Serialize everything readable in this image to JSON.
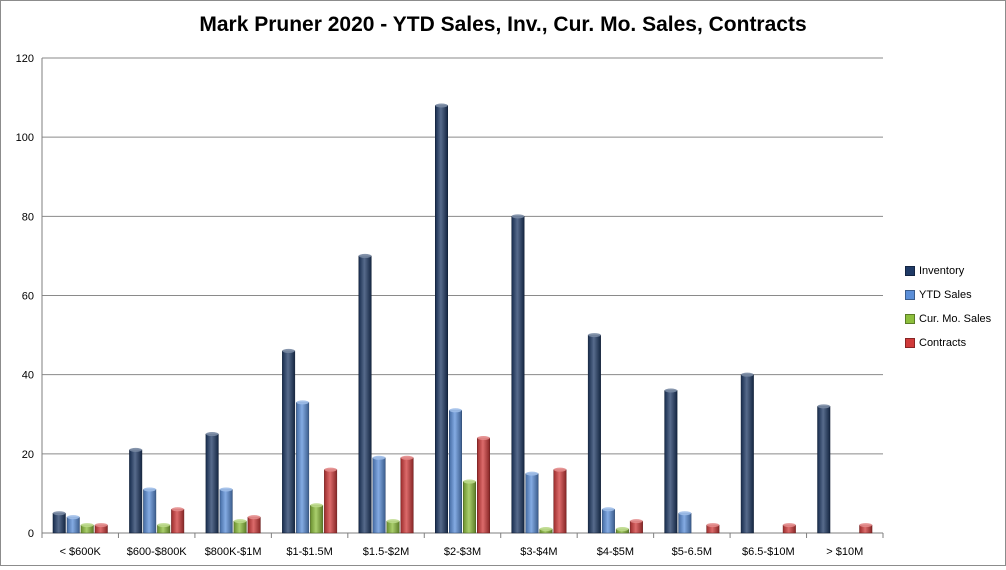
{
  "chart_data": {
    "type": "bar",
    "title": "Mark Pruner 2020 - YTD Sales, Inv., Cur. Mo. Sales, Contracts",
    "xlabel": "",
    "ylabel": "",
    "ylim": [
      0,
      120
    ],
    "yticks": [
      0,
      20,
      40,
      60,
      80,
      100,
      120
    ],
    "grid": true,
    "legend_position": "right",
    "categories": [
      "< $600K",
      "$600-$800K",
      "$800K-$1M",
      "$1-$1.5M",
      "$1.5-$2M",
      "$2-$3M",
      "$3-$4M",
      "$4-$5M",
      "$5-6.5M",
      "$6.5-$10M",
      "> $10M"
    ],
    "series": [
      {
        "name": "Inventory",
        "color": "#1f3a66",
        "values": [
          5,
          21,
          25,
          46,
          70,
          108,
          80,
          50,
          36,
          40,
          32
        ]
      },
      {
        "name": "YTD Sales",
        "color": "#5b8fd9",
        "values": [
          4,
          11,
          11,
          33,
          19,
          31,
          15,
          6,
          5,
          0,
          0
        ]
      },
      {
        "name": "Cur. Mo. Sales",
        "color": "#8dbf3c",
        "values": [
          2,
          2,
          3,
          7,
          3,
          13,
          1,
          1,
          0,
          0,
          0
        ]
      },
      {
        "name": "Contracts",
        "color": "#d03a3a",
        "values": [
          2,
          6,
          4,
          16,
          19,
          24,
          16,
          3,
          2,
          2,
          2
        ]
      }
    ]
  }
}
